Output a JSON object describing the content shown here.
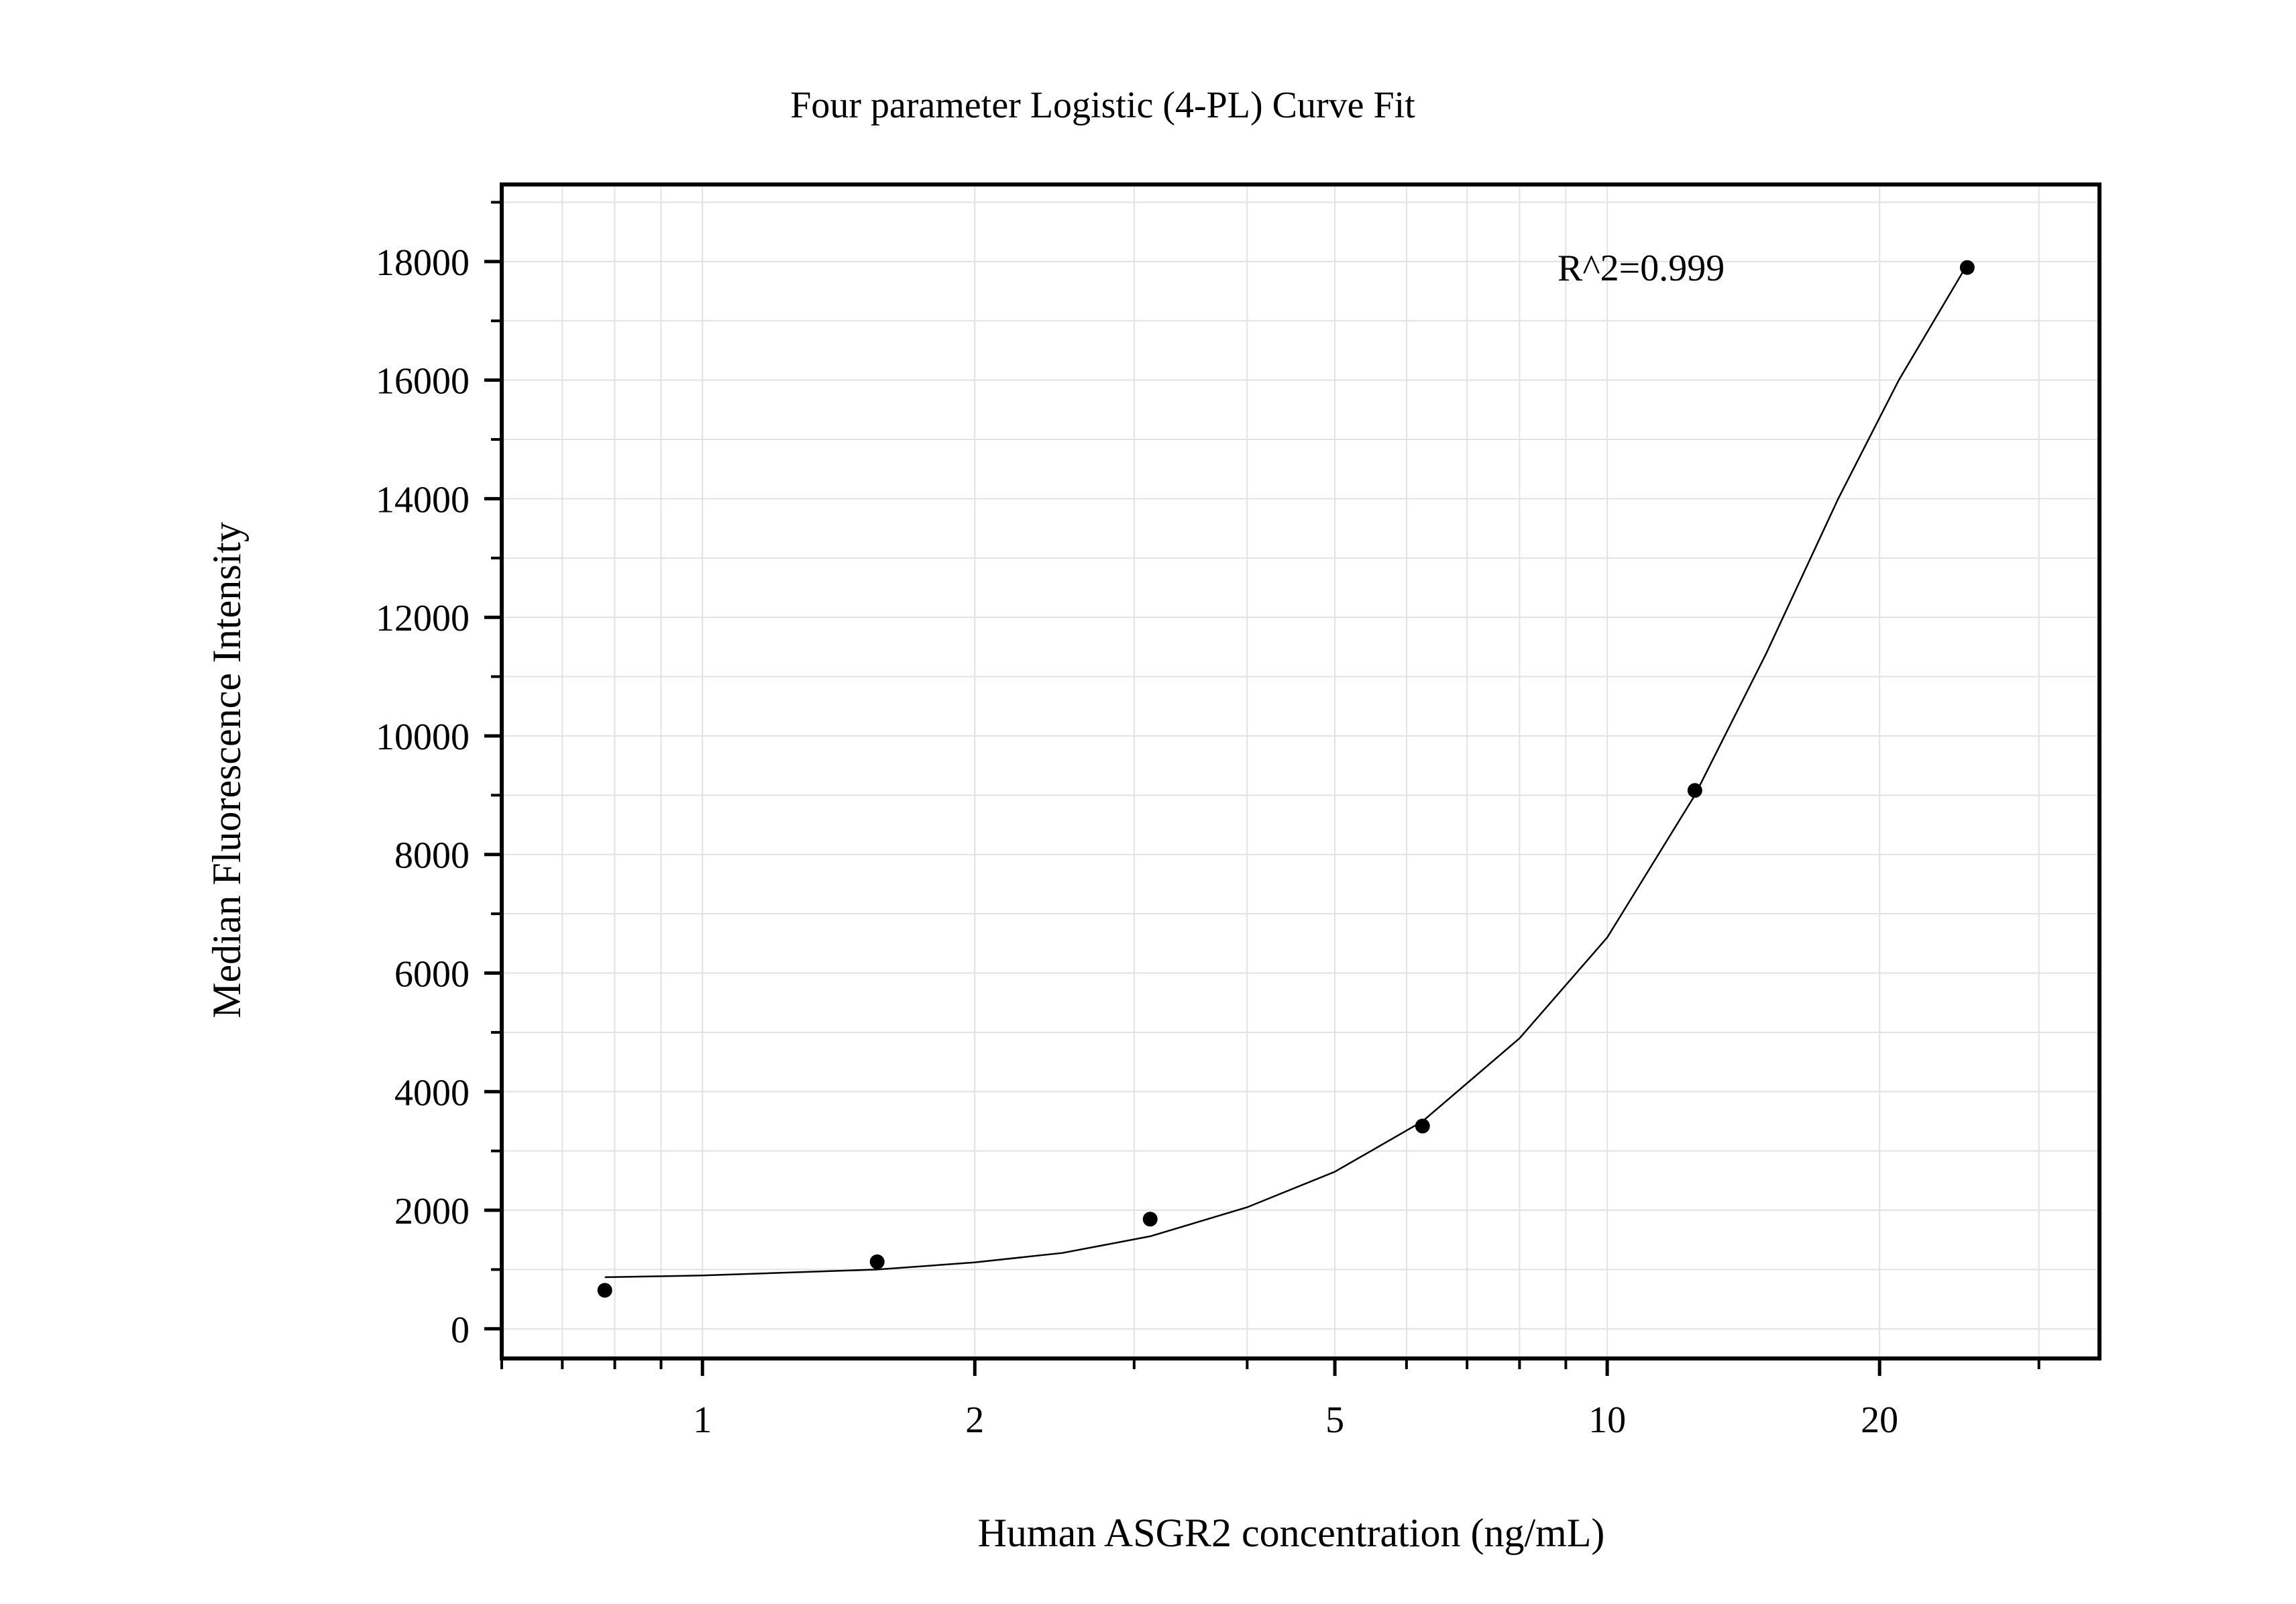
{
  "chart_data": {
    "type": "scatter",
    "title": "Four parameter Logistic (4-PL) Curve Fit",
    "xlabel": "Human ASGR2 concentration (ng/mL)",
    "ylabel": "Median Fluorescence Intensity",
    "x_scale": "log",
    "xlim": [
      0.6,
      35
    ],
    "ylim": [
      -500,
      19300
    ],
    "x_ticks": [
      1,
      2,
      5,
      10,
      20
    ],
    "y_ticks": [
      0,
      2000,
      4000,
      6000,
      8000,
      10000,
      12000,
      14000,
      16000,
      18000
    ],
    "grid": true,
    "annotation": "R^2=0.999",
    "points": [
      {
        "x": 0.78,
        "y": 650
      },
      {
        "x": 1.56,
        "y": 1130
      },
      {
        "x": 3.125,
        "y": 1850
      },
      {
        "x": 6.25,
        "y": 3420
      },
      {
        "x": 12.5,
        "y": 9080
      },
      {
        "x": 25,
        "y": 17900
      }
    ],
    "fit_curve": [
      {
        "x": 0.78,
        "y": 870
      },
      {
        "x": 1.0,
        "y": 900
      },
      {
        "x": 1.56,
        "y": 1000
      },
      {
        "x": 2.0,
        "y": 1120
      },
      {
        "x": 2.5,
        "y": 1280
      },
      {
        "x": 3.125,
        "y": 1560
      },
      {
        "x": 4.0,
        "y": 2050
      },
      {
        "x": 5.0,
        "y": 2650
      },
      {
        "x": 6.25,
        "y": 3500
      },
      {
        "x": 8.0,
        "y": 4900
      },
      {
        "x": 10.0,
        "y": 6600
      },
      {
        "x": 12.5,
        "y": 9000
      },
      {
        "x": 15.0,
        "y": 11400
      },
      {
        "x": 18.0,
        "y": 14000
      },
      {
        "x": 21.0,
        "y": 16000
      },
      {
        "x": 25.0,
        "y": 17950
      }
    ]
  }
}
